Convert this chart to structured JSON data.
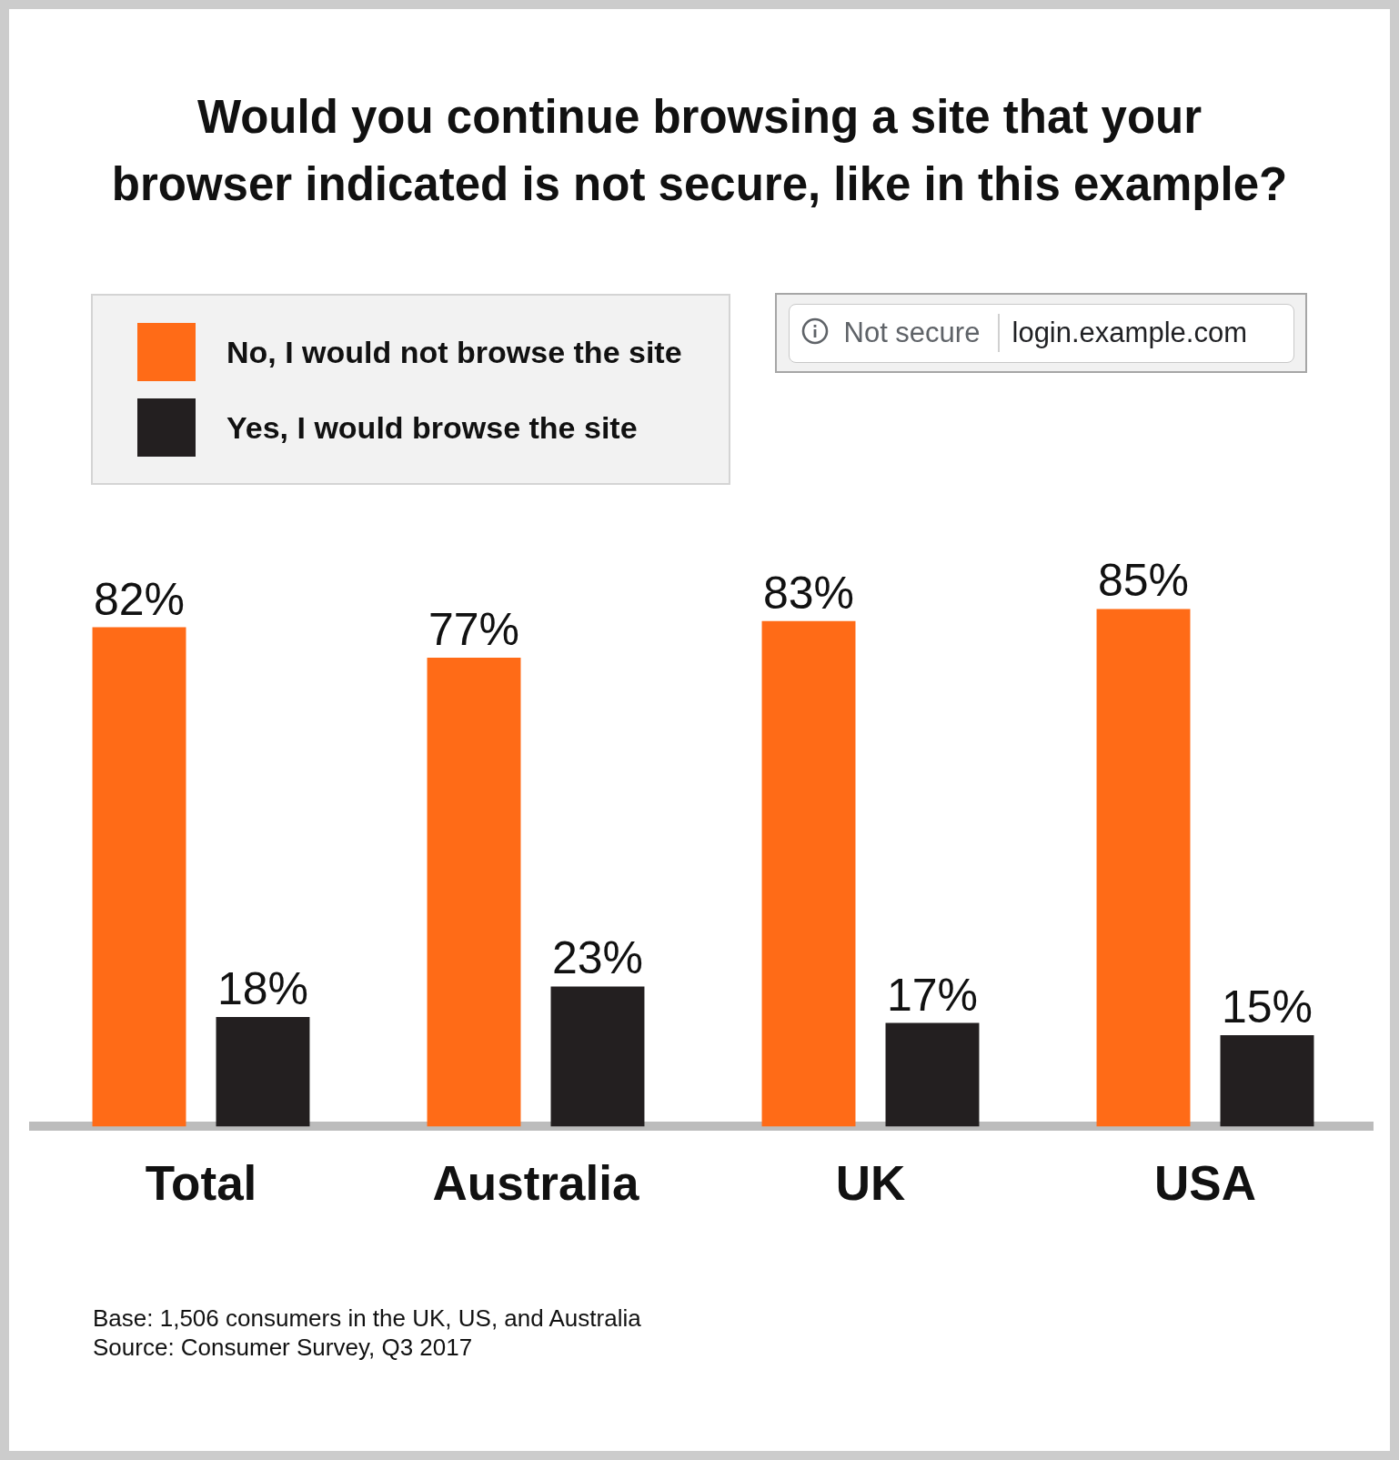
{
  "chart_data": {
    "type": "bar",
    "title": "Would you continue browsing a site that your browser indicated is not secure, like in this example?",
    "categories": [
      "Total",
      "Australia",
      "UK",
      "USA"
    ],
    "series": [
      {
        "name": "No, I would not browse the site",
        "color": "#ff6b17",
        "values": [
          82,
          77,
          83,
          85
        ],
        "value_labels": [
          "82%",
          "77%",
          "83%",
          "85%"
        ]
      },
      {
        "name": "Yes, I would browse the site",
        "color": "#231f20",
        "values": [
          18,
          23,
          17,
          15
        ],
        "value_labels": [
          "18%",
          "23%",
          "17%",
          "15%"
        ]
      }
    ],
    "legend": "top left",
    "grid": false,
    "tick_labels": "x",
    "annotations": [
      "Not secure",
      "login.example.com",
      "Base: 1,506 consumers in the UK, US, and Australia",
      "Source: Consumer Survey, Q3 2017"
    ]
  }
}
